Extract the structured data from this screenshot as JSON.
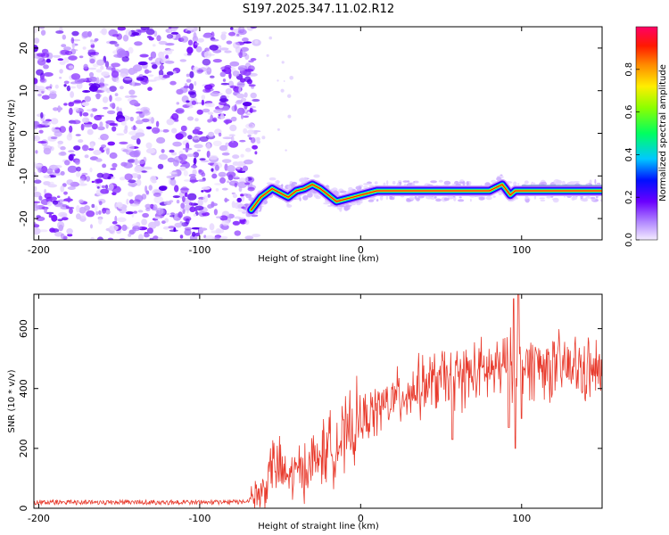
{
  "title": "S197.2025.347.11.02.R12",
  "chart_data": [
    {
      "type": "heatmap",
      "title": "S197.2025.347.11.02.R12",
      "xlabel": "Height of straight line (km)",
      "ylabel": "Frequency (Hz)",
      "xlim": [
        -203,
        150
      ],
      "ylim": [
        -25,
        25
      ],
      "xticks": [
        -200,
        -100,
        0,
        100
      ],
      "yticks": [
        -20,
        -10,
        0,
        10,
        20
      ],
      "colorbar": {
        "label": "Normalized spectral amplitude",
        "range": [
          0,
          1
        ],
        "ticks": [
          0.0,
          0.2,
          0.4,
          0.6,
          0.8
        ],
        "tick_labels": [
          "0.0",
          "0.2",
          "0.4",
          "0.6",
          "0.8"
        ]
      },
      "noise_region": {
        "x_from": -203,
        "x_to": -68
      },
      "ridge": {
        "x": [
          -68,
          -62,
          -55,
          -50,
          -45,
          -40,
          -35,
          -30,
          -25,
          -20,
          -15,
          -10,
          -5,
          0,
          5,
          10,
          20,
          40,
          60,
          80,
          88,
          90,
          93,
          96,
          100,
          120,
          150
        ],
        "freq": [
          -18,
          -15,
          -13,
          -14,
          -15,
          -13.5,
          -13,
          -12,
          -13,
          -14.5,
          -16,
          -15.5,
          -15,
          -14.5,
          -14,
          -13.5,
          -13.5,
          -13.5,
          -13.5,
          -13.5,
          -12,
          -13,
          -14.5,
          -13.5,
          -13.5,
          -13.5,
          -13.5
        ]
      }
    },
    {
      "type": "line",
      "xlabel": "Height of straight line (km)",
      "ylabel": "SNR (10 * v/v)",
      "xlim": [
        -203,
        150
      ],
      "ylim": [
        0,
        715
      ],
      "xticks": [
        -200,
        -100,
        0,
        100
      ],
      "yticks": [
        0,
        200,
        400,
        600
      ],
      "color": "#e83a2c",
      "series": [
        {
          "name": "SNR",
          "x": [
            -203,
            -180,
            -150,
            -120,
            -90,
            -70,
            -60,
            -55,
            -50,
            -45,
            -40,
            -30,
            -20,
            -10,
            0,
            10,
            20,
            30,
            40,
            50,
            60,
            70,
            80,
            90,
            95,
            100,
            110,
            120,
            130,
            140,
            150
          ],
          "y": [
            20,
            20,
            20,
            20,
            20,
            22,
            60,
            150,
            130,
            100,
            120,
            150,
            200,
            230,
            290,
            330,
            360,
            390,
            410,
            430,
            440,
            450,
            460,
            470,
            480,
            480,
            480,
            470,
            470,
            460,
            450
          ]
        }
      ],
      "spikes": [
        {
          "x": 57,
          "y": 230
        },
        {
          "x": 92,
          "y": 270
        },
        {
          "x": 95,
          "y": 700
        },
        {
          "x": 96,
          "y": 200
        },
        {
          "x": 98,
          "y": 715
        },
        {
          "x": 100,
          "y": 300
        }
      ]
    }
  ]
}
